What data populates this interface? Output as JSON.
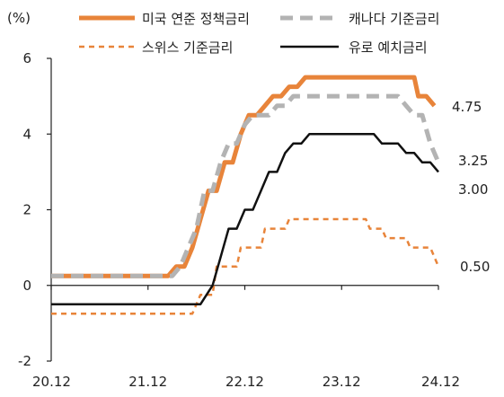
{
  "chart_data": {
    "type": "line",
    "unit_label": "(%)",
    "xlabel": "",
    "ylabel": "",
    "x_ticks": [
      "20.12",
      "21.12",
      "22.12",
      "23.12",
      "24.12"
    ],
    "x_range": [
      0,
      48
    ],
    "y_ticks": [
      "-2",
      "0",
      "2",
      "4",
      "6"
    ],
    "ylim": [
      -2,
      6
    ],
    "grid": false,
    "legend_position": "top",
    "series": [
      {
        "name": "미국 연준 정책금리",
        "color": "#e8843a",
        "style": "solid-thick",
        "end_label": "4.75",
        "points": [
          [
            0,
            0.25
          ],
          [
            14.5,
            0.25
          ],
          [
            15.5,
            0.5
          ],
          [
            16.5,
            0.5
          ],
          [
            17.5,
            1.0
          ],
          [
            18.5,
            1.75
          ],
          [
            19.5,
            2.5
          ],
          [
            20.5,
            2.5
          ],
          [
            21.5,
            3.25
          ],
          [
            22.5,
            3.25
          ],
          [
            23.5,
            4.0
          ],
          [
            24.5,
            4.5
          ],
          [
            25.5,
            4.5
          ],
          [
            26.5,
            4.75
          ],
          [
            27.5,
            5.0
          ],
          [
            28.5,
            5.0
          ],
          [
            29.5,
            5.25
          ],
          [
            30.5,
            5.25
          ],
          [
            31.5,
            5.5
          ],
          [
            45,
            5.5
          ],
          [
            45.5,
            5.0
          ],
          [
            46.5,
            5.0
          ],
          [
            47.5,
            4.75
          ]
        ]
      },
      {
        "name": "캐나다 기준금리",
        "color": "#b3b3b3",
        "style": "dashed-thick",
        "end_label": "3.25",
        "points": [
          [
            0,
            0.25
          ],
          [
            15,
            0.25
          ],
          [
            16,
            0.5
          ],
          [
            17,
            1.0
          ],
          [
            18,
            1.5
          ],
          [
            19,
            2.5
          ],
          [
            20,
            2.5
          ],
          [
            21,
            3.25
          ],
          [
            22,
            3.75
          ],
          [
            23,
            3.75
          ],
          [
            24,
            4.25
          ],
          [
            25,
            4.5
          ],
          [
            27,
            4.5
          ],
          [
            28,
            4.75
          ],
          [
            29,
            4.75
          ],
          [
            30,
            5.0
          ],
          [
            43,
            5.0
          ],
          [
            44,
            4.75
          ],
          [
            45,
            4.5
          ],
          [
            46,
            4.5
          ],
          [
            47,
            3.75
          ],
          [
            48,
            3.25
          ]
        ]
      },
      {
        "name": "스위스 기준금리",
        "color": "#e8843a",
        "style": "dashed",
        "end_label": "0.50",
        "points": [
          [
            0,
            -0.75
          ],
          [
            17.5,
            -0.75
          ],
          [
            18.5,
            -0.25
          ],
          [
            20,
            -0.25
          ],
          [
            20.5,
            0.5
          ],
          [
            23,
            0.5
          ],
          [
            23.5,
            1.0
          ],
          [
            26,
            1.0
          ],
          [
            26.5,
            1.5
          ],
          [
            29,
            1.5
          ],
          [
            29.5,
            1.75
          ],
          [
            39,
            1.75
          ],
          [
            39.5,
            1.5
          ],
          [
            41,
            1.5
          ],
          [
            41.5,
            1.25
          ],
          [
            44,
            1.25
          ],
          [
            44.5,
            1.0
          ],
          [
            47,
            1.0
          ],
          [
            48,
            0.5
          ]
        ]
      },
      {
        "name": "유로 예치금리",
        "color": "#111111",
        "style": "solid",
        "end_label": "3.00",
        "points": [
          [
            0,
            -0.5
          ],
          [
            18.5,
            -0.5
          ],
          [
            20,
            0.0
          ],
          [
            21,
            0.75
          ],
          [
            22,
            1.5
          ],
          [
            23,
            1.5
          ],
          [
            24,
            2.0
          ],
          [
            25,
            2.0
          ],
          [
            26,
            2.5
          ],
          [
            27,
            3.0
          ],
          [
            28,
            3.0
          ],
          [
            29,
            3.5
          ],
          [
            30,
            3.75
          ],
          [
            31,
            3.75
          ],
          [
            32,
            4.0
          ],
          [
            40,
            4.0
          ],
          [
            41,
            3.75
          ],
          [
            43,
            3.75
          ],
          [
            44,
            3.5
          ],
          [
            45,
            3.5
          ],
          [
            46,
            3.25
          ],
          [
            47,
            3.25
          ],
          [
            48,
            3.0
          ]
        ]
      }
    ]
  }
}
